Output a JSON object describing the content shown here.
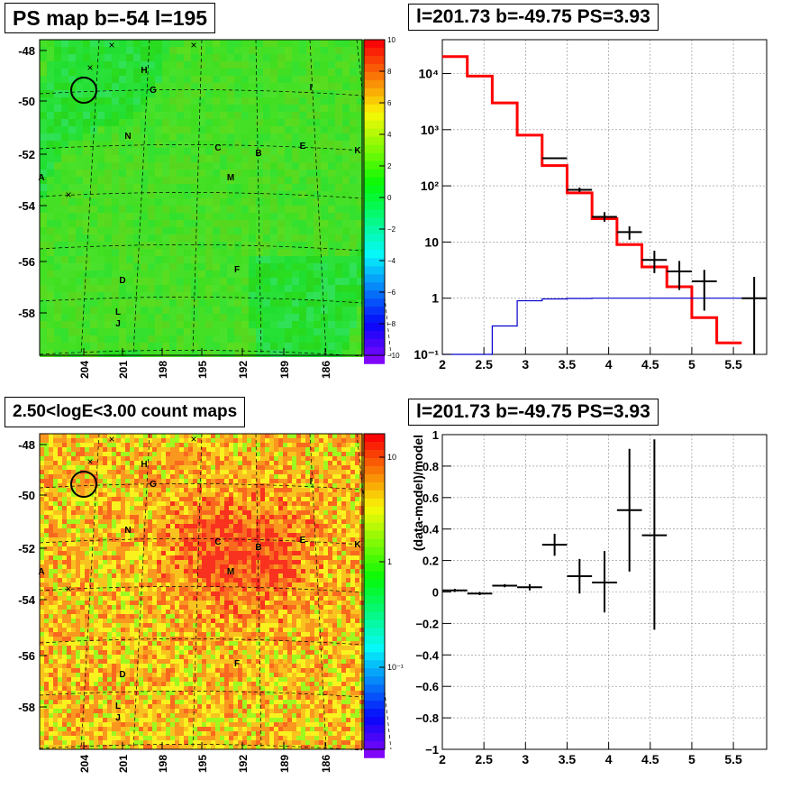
{
  "chart_data": [
    {
      "type": "heatmap",
      "title": "PS map b=-54 l=195",
      "y_ticks": [
        "-48",
        "-50",
        "-52",
        "-54",
        "-56",
        "-58"
      ],
      "x_ticks": [
        "204",
        "201",
        "198",
        "195",
        "192",
        "189",
        "186"
      ],
      "colorbar_ticks": [
        "10",
        "8",
        "6",
        "4",
        "2",
        "0",
        "−2",
        "−4",
        "−6",
        "−8",
        "−10"
      ],
      "colorbar_range": [
        -10,
        10
      ],
      "source_labels": [
        "H",
        "G",
        "I",
        "N",
        "C",
        "B",
        "E",
        "K",
        "A",
        "M",
        "F",
        "D",
        "L",
        "J"
      ],
      "circle_position": {
        "l": 204.5,
        "b": -49.6
      }
    },
    {
      "type": "line",
      "title": "l=201.73 b=-49.75 PS=3.93",
      "x_ticks": [
        "2",
        "2.5",
        "3",
        "3.5",
        "4",
        "4.5",
        "5",
        "5.5"
      ],
      "y_ticks": [
        "10⁻¹",
        "1",
        "10",
        "10²",
        "10³",
        "10⁴"
      ],
      "xlim": [
        2.0,
        5.9
      ],
      "ylim": [
        0.1,
        40000
      ],
      "yscale": "log",
      "grid": true,
      "series": [
        {
          "color": "#ff0000",
          "bin_edges": [
            2.0,
            2.3,
            2.6,
            2.9,
            3.2,
            3.5,
            3.8,
            4.1,
            4.4,
            4.7,
            5.0,
            5.3,
            5.6
          ],
          "values": [
            20000,
            9000,
            3000,
            800,
            230,
            75,
            26,
            9,
            3.6,
            1.6,
            0.45,
            0.16
          ]
        },
        {
          "color": "#0000cc",
          "bin_edges": [
            2.0,
            2.3,
            2.6,
            2.9,
            3.2,
            3.5,
            3.8,
            4.1,
            4.4,
            4.7,
            5.0,
            5.3,
            5.6,
            5.9
          ],
          "values": [
            0.1,
            0.1,
            0.32,
            0.9,
            0.97,
            0.99,
            1.0,
            1.0,
            1.0,
            1.0,
            1.0,
            1.0,
            1.0
          ]
        },
        {
          "type": "errorbar",
          "color": "#000000",
          "points": [
            {
              "x": 3.35,
              "y": 310,
              "xerr": 0.15,
              "ylo": 300,
              "yhi": 320
            },
            {
              "x": 3.65,
              "y": 85,
              "xerr": 0.15,
              "ylo": 78,
              "yhi": 93
            },
            {
              "x": 3.95,
              "y": 28,
              "xerr": 0.15,
              "ylo": 23,
              "yhi": 34
            },
            {
              "x": 4.25,
              "y": 15,
              "xerr": 0.15,
              "ylo": 11,
              "yhi": 19
            },
            {
              "x": 4.55,
              "y": 4.8,
              "xerr": 0.15,
              "ylo": 2.8,
              "yhi": 7
            },
            {
              "x": 4.85,
              "y": 3.0,
              "xerr": 0.15,
              "ylo": 1.4,
              "yhi": 4.6
            },
            {
              "x": 5.15,
              "y": 2.0,
              "xerr": 0.15,
              "ylo": 0.6,
              "yhi": 3.2
            },
            {
              "x": 5.75,
              "y": 1.0,
              "xerr": 0.15,
              "ylo": 0.1,
              "yhi": 2.4
            }
          ]
        }
      ]
    },
    {
      "type": "heatmap",
      "title": "2.50<logE<3.00 count maps",
      "y_ticks": [
        "-48",
        "-50",
        "-52",
        "-54",
        "-56",
        "-58"
      ],
      "x_ticks": [
        "204",
        "201",
        "198",
        "195",
        "192",
        "189",
        "186"
      ],
      "colorbar_ticks": [
        "10",
        "1",
        "10⁻¹"
      ],
      "colorbar_scale": "log",
      "source_labels": [
        "H",
        "G",
        "I",
        "N",
        "C",
        "B",
        "E",
        "K",
        "A",
        "M",
        "F",
        "D",
        "L",
        "J"
      ],
      "circle_position": {
        "l": 204.5,
        "b": -49.6
      }
    },
    {
      "type": "scatter",
      "title": "l=201.73 b=-49.75 PS=3.93",
      "ylabel": "(data-model)/model",
      "x_ticks": [
        "2",
        "2.5",
        "3",
        "3.5",
        "4",
        "4.5",
        "5",
        "5.5"
      ],
      "y_ticks": [
        "−1",
        "−0.8",
        "−0.6",
        "−0.4",
        "−0.2",
        "0",
        "0.2",
        "0.4",
        "0.6",
        "0.8",
        "1"
      ],
      "xlim": [
        2.0,
        5.9
      ],
      "ylim": [
        -1,
        1
      ],
      "grid": true,
      "points": [
        {
          "x": 2.15,
          "y": 0.01,
          "xerr": 0.15,
          "ylo": 0.0,
          "yhi": 0.02
        },
        {
          "x": 2.45,
          "y": -0.01,
          "xerr": 0.15,
          "ylo": -0.02,
          "yhi": 0.0
        },
        {
          "x": 2.75,
          "y": 0.04,
          "xerr": 0.15,
          "ylo": 0.03,
          "yhi": 0.05
        },
        {
          "x": 3.05,
          "y": 0.03,
          "xerr": 0.15,
          "ylo": 0.01,
          "yhi": 0.05
        },
        {
          "x": 3.35,
          "y": 0.3,
          "xerr": 0.15,
          "ylo": 0.23,
          "yhi": 0.37
        },
        {
          "x": 3.65,
          "y": 0.1,
          "xerr": 0.15,
          "ylo": -0.01,
          "yhi": 0.21
        },
        {
          "x": 3.95,
          "y": 0.06,
          "xerr": 0.15,
          "ylo": -0.13,
          "yhi": 0.26
        },
        {
          "x": 4.25,
          "y": 0.52,
          "xerr": 0.15,
          "ylo": 0.13,
          "yhi": 0.91
        },
        {
          "x": 4.55,
          "y": 0.36,
          "xerr": 0.15,
          "ylo": -0.24,
          "yhi": 0.97
        }
      ]
    }
  ]
}
